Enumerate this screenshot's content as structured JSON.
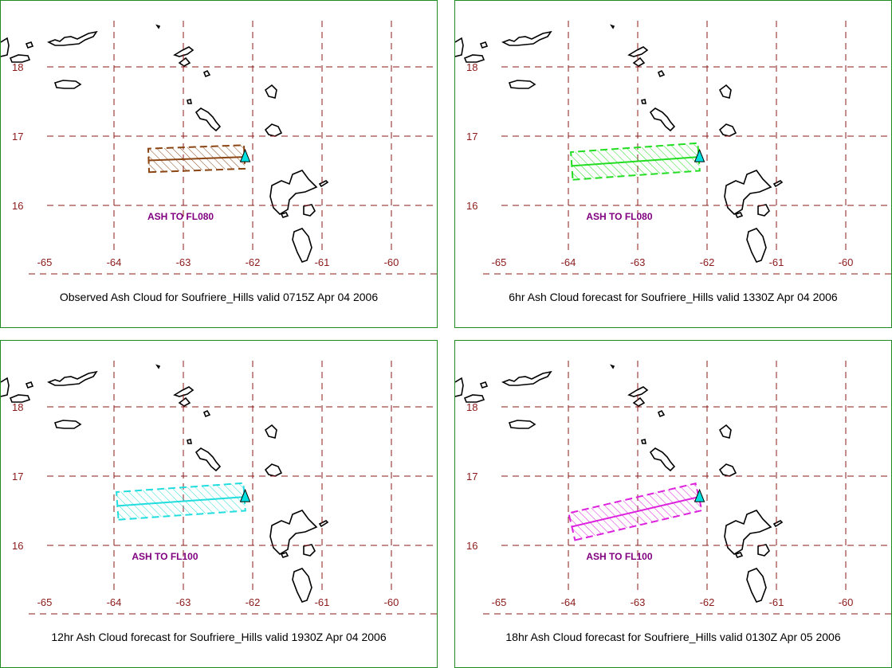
{
  "colors": {
    "border": "#1f8a1f",
    "grid": "#8b1a1a",
    "label_text": "#800080",
    "coast": "#000000",
    "volcano": "#00e0e0"
  },
  "axes": {
    "lat_labels": [
      "18",
      "17",
      "16"
    ],
    "lon_labels": [
      "-65",
      "-64",
      "-63",
      "-62",
      "-61",
      "-60"
    ]
  },
  "panels": [
    {
      "caption": "Observed Ash Cloud for Soufriere_Hills valid 0715Z Apr 04 2006",
      "ash_label": "ASH TO FL080",
      "color": "#8b4513",
      "cloud": {
        "lon_start": -63.5,
        "lat_start": 16.65,
        "lon_end": -62.12,
        "lat_end": 16.7,
        "half_width_deg": 0.17
      }
    },
    {
      "caption": "6hr Ash Cloud forecast for Soufriere_Hills valid 1330Z Apr 04 2006",
      "ash_label": "ASH TO FL080",
      "color": "#22dd22",
      "cloud": {
        "lon_start": -63.95,
        "lat_start": 16.57,
        "lon_end": -62.12,
        "lat_end": 16.7,
        "half_width_deg": 0.2
      }
    },
    {
      "caption": "12hr Ash Cloud forecast for Soufriere_Hills valid 1930Z Apr 04 2006",
      "ash_label": "ASH TO FL100",
      "color": "#22dddd",
      "cloud": {
        "lon_start": -63.95,
        "lat_start": 16.57,
        "lon_end": -62.12,
        "lat_end": 16.7,
        "half_width_deg": 0.2
      }
    },
    {
      "caption": "18hr Ash Cloud forecast for Soufriere_Hills valid 0130Z Apr 05 2006",
      "ash_label": "ASH TO FL100",
      "color": "#dd22dd",
      "cloud": {
        "lon_start": -63.95,
        "lat_start": 16.27,
        "lon_end": -62.12,
        "lat_end": 16.7,
        "half_width_deg": 0.2
      }
    }
  ]
}
